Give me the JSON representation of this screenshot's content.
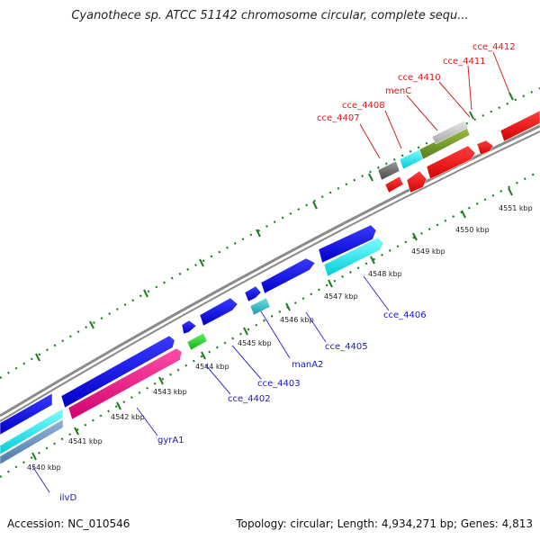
{
  "title": "Cyanothece sp. ATCC 51142 chromosome circular, complete sequ...",
  "footer": {
    "accession": "Accession: NC_010546",
    "info": "Topology: circular; Length: 4,934,271 bp; Genes: 4,813"
  },
  "colors": {
    "backbone": "#888888",
    "tick": "#1e7d1e",
    "reverse_label": "#d81818",
    "forward_label": "#1818c8",
    "connector": "#3333cc"
  },
  "scale_ticks": [
    {
      "label": "4540 kbp"
    },
    {
      "label": "4541 kbp"
    },
    {
      "label": "4542 kbp"
    },
    {
      "label": "4543 kbp"
    },
    {
      "label": "4544 kbp"
    },
    {
      "label": "4545 kbp"
    },
    {
      "label": "4546 kbp"
    },
    {
      "label": "4547 kbp"
    },
    {
      "label": "4548 kbp"
    },
    {
      "label": "4549 kbp"
    },
    {
      "label": "4550 kbp"
    },
    {
      "label": "4551 kbp"
    }
  ],
  "forward_labels": [
    {
      "name": "ilvD"
    },
    {
      "name": "gyrA1"
    },
    {
      "name": "cce_4402"
    },
    {
      "name": "cce_4403"
    },
    {
      "name": "manA2"
    },
    {
      "name": "cce_4405"
    },
    {
      "name": "cce_4406"
    }
  ],
  "reverse_labels": [
    {
      "name": "cce_4407"
    },
    {
      "name": "cce_4408"
    },
    {
      "name": "menC"
    },
    {
      "name": "cce_4410"
    },
    {
      "name": "cce_4411"
    },
    {
      "name": "cce_4412"
    }
  ]
}
